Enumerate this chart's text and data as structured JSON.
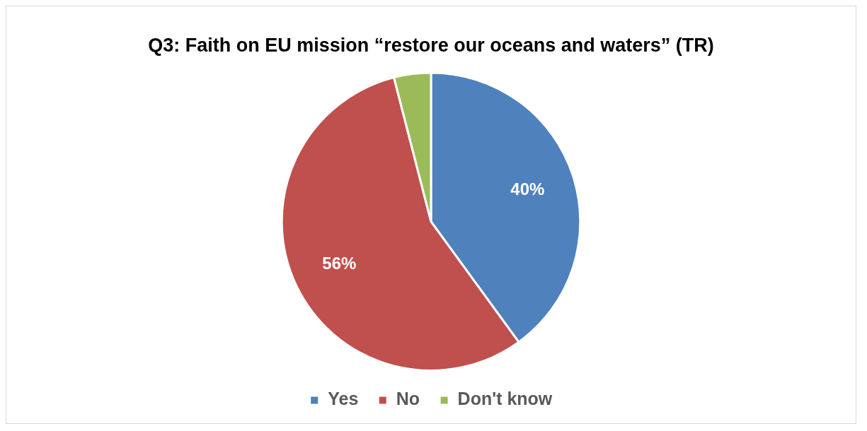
{
  "chart_data": {
    "type": "pie",
    "title": "Q3: Faith on EU mission “restore our oceans and waters” (TR)",
    "categories": [
      "Yes",
      "No",
      "Don't know"
    ],
    "values": [
      40,
      56,
      4
    ],
    "colors": [
      "#4f81bd",
      "#c0504d",
      "#9bbb59"
    ],
    "value_labels": [
      "40%",
      "56%",
      null
    ],
    "legend": "bottom"
  }
}
